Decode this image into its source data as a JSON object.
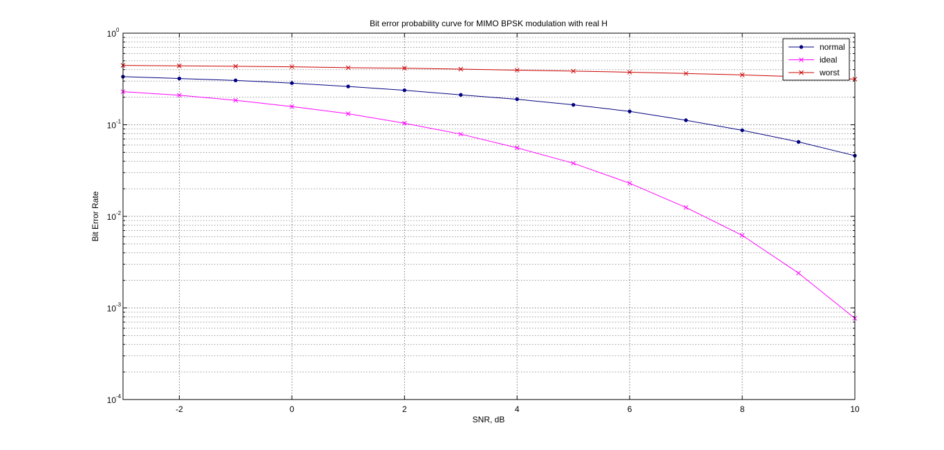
{
  "chart_data": {
    "type": "line",
    "title": "Bit error probability curve for MIMO BPSK modulation with real H",
    "xlabel": "SNR, dB",
    "ylabel": "Bit Error Rate",
    "xlim": [
      -3,
      10
    ],
    "ylim": [
      0.0001,
      1
    ],
    "yscale": "log",
    "grid": true,
    "grid_minor": true,
    "legend_position": "top-right",
    "x_ticks": [
      -2,
      0,
      2,
      4,
      6,
      8,
      10
    ],
    "x_tick_labels": [
      "-2",
      "0",
      "2",
      "4",
      "6",
      "8",
      "10"
    ],
    "y_ticks": [
      {
        "value": 1,
        "base": "10",
        "exp": "0"
      },
      {
        "value": 0.1,
        "base": "10",
        "exp": "-1"
      },
      {
        "value": 0.01,
        "base": "10",
        "exp": "-2"
      },
      {
        "value": 0.001,
        "base": "10",
        "exp": "-3"
      },
      {
        "value": 0.0001,
        "base": "10",
        "exp": "-4"
      }
    ],
    "x": [
      -3,
      -2,
      -1,
      0,
      1,
      2,
      3,
      4,
      5,
      6,
      7,
      8,
      9,
      10
    ],
    "series": [
      {
        "name": "normal",
        "color": "#000080",
        "marker": "dot",
        "values": [
          0.335,
          0.32,
          0.305,
          0.285,
          0.262,
          0.238,
          0.212,
          0.19,
          0.165,
          0.14,
          0.112,
          0.087,
          0.065,
          0.046
        ]
      },
      {
        "name": "ideal",
        "color": "#ff00ff",
        "marker": "x",
        "values": [
          0.23,
          0.21,
          0.185,
          0.158,
          0.132,
          0.104,
          0.079,
          0.056,
          0.038,
          0.023,
          0.0125,
          0.0062,
          0.0024,
          0.00077
        ]
      },
      {
        "name": "worst",
        "color": "#cc0000",
        "marker": "x",
        "values": [
          0.445,
          0.44,
          0.435,
          0.43,
          0.42,
          0.415,
          0.405,
          0.395,
          0.385,
          0.375,
          0.363,
          0.35,
          0.335,
          0.315
        ]
      }
    ]
  }
}
